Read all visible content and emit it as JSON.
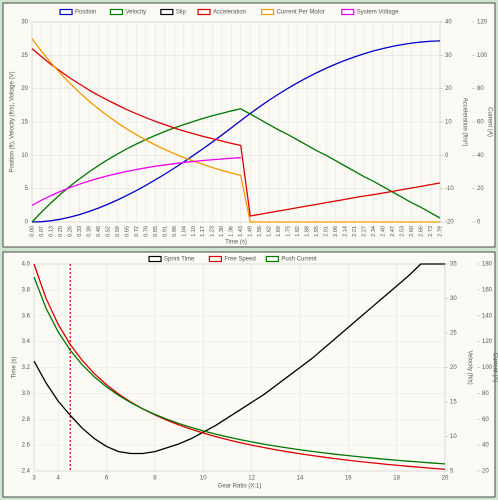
{
  "chart_data": [
    {
      "type": "line",
      "legend": "top",
      "grid": true,
      "categories": [
        "0.00",
        "0.07",
        "0.13",
        "0.20",
        "0.26",
        "0.33",
        "0.39",
        "0.46",
        "0.52",
        "0.59",
        "0.65",
        "0.72",
        "0.78",
        "0.85",
        "0.91",
        "0.98",
        "1.04",
        "1.10",
        "1.17",
        "1.23",
        "1.30",
        "1.36",
        "1.43",
        "1.49",
        "1.56",
        "1.62",
        "1.69",
        "1.75",
        "1.82",
        "1.88",
        "1.95",
        "2.01",
        "2.08",
        "2.14",
        "2.21",
        "2.27",
        "2.34",
        "2.40",
        "2.47",
        "2.53",
        "2.60",
        "2.66",
        "2.73",
        "2.79"
      ],
      "xlabel": "Time (s)",
      "ylabel": "Position (ft), Velocity (ft/s), Voltage (V)",
      "ylim": [
        0,
        30
      ],
      "yticks": [
        0,
        5,
        10,
        15,
        20,
        25,
        30
      ],
      "y2label": "Acceleration (ft/s²)",
      "y2lim": [
        -20,
        40
      ],
      "y2ticks": [
        -20,
        -10,
        0,
        10,
        20,
        30,
        40
      ],
      "y3label": "Current (A)",
      "y3lim": [
        0,
        120
      ],
      "y3ticks": [
        0,
        20,
        40,
        60,
        80,
        100,
        120
      ],
      "series": [
        {
          "name": "Position",
          "color": "#0000cc",
          "axis": "y",
          "values": [
            0,
            0.05,
            0.19,
            0.42,
            0.73,
            1.11,
            1.57,
            2.08,
            2.66,
            3.3,
            3.98,
            4.72,
            5.5,
            6.32,
            7.18,
            8.08,
            9.01,
            9.98,
            10.97,
            11.99,
            13.04,
            14.11,
            15.2,
            16.28,
            17.3,
            18.28,
            19.2,
            20.07,
            20.89,
            21.67,
            22.39,
            23.06,
            23.68,
            24.25,
            24.77,
            25.24,
            25.66,
            26.03,
            26.35,
            26.61,
            26.83,
            26.99,
            27.11,
            27.17
          ]
        },
        {
          "name": "Velocity",
          "color": "#007700",
          "axis": "y",
          "values": [
            0,
            1.49,
            2.87,
            4.16,
            5.36,
            6.47,
            7.5,
            8.46,
            9.36,
            10.19,
            10.98,
            11.7,
            12.37,
            12.99,
            13.58,
            14.12,
            14.61,
            15.08,
            15.53,
            15.93,
            16.3,
            16.66,
            16.98,
            16.2,
            15.4,
            14.6,
            13.8,
            13.1,
            12.3,
            11.5,
            10.7,
            10.0,
            9.2,
            8.4,
            7.6,
            6.8,
            6.1,
            5.3,
            4.5,
            3.7,
            2.9,
            2.2,
            1.4,
            0.6
          ]
        },
        {
          "name": "Slip",
          "color": "#000000",
          "axis": "y",
          "values": [
            null,
            null,
            null,
            null,
            null,
            null,
            null,
            null,
            null,
            null,
            null,
            null,
            null,
            null,
            null,
            null,
            null,
            null,
            null,
            null,
            null,
            null,
            null,
            null,
            null,
            null,
            null,
            null,
            null,
            null,
            null,
            null,
            null,
            null,
            null,
            null,
            null,
            null,
            null,
            null,
            null,
            null,
            null,
            null
          ]
        },
        {
          "name": "Acceleration",
          "color": "#dd0000",
          "axis": "y2",
          "values": [
            32,
            29.6,
            27.3,
            25.2,
            23.2,
            21.4,
            19.6,
            18,
            16.5,
            15.1,
            13.7,
            12.5,
            11.3,
            10.2,
            9.2,
            8.2,
            7.3,
            6.5,
            5.7,
            5,
            4.3,
            3.6,
            3,
            -18.2,
            -17.7,
            -17.2,
            -16.7,
            -16.2,
            -15.7,
            -15.2,
            -14.7,
            -14.2,
            -13.7,
            -13.2,
            -12.7,
            -12.2,
            -11.8,
            -11.3,
            -10.8,
            -10.3,
            -9.8,
            -9.3,
            -8.8,
            -8.3
          ]
        },
        {
          "name": "Current Per Motor",
          "color": "#f39c00",
          "axis": "y3",
          "values": [
            110,
            102.5,
            95.5,
            89.1,
            83.2,
            77.7,
            72.6,
            67.9,
            63.6,
            59.5,
            55.8,
            52.4,
            49.2,
            46.2,
            43.5,
            41,
            38.7,
            36.6,
            34.6,
            32.7,
            31,
            29.4,
            28,
            0,
            0,
            0,
            0,
            0,
            0,
            0,
            0,
            0,
            0,
            0,
            0,
            0,
            0,
            0,
            0,
            0,
            0,
            0,
            0,
            0
          ]
        },
        {
          "name": "System Voltage",
          "color": "#ee00ee",
          "axis": "y",
          "values": [
            2.5,
            3.27,
            3.96,
            4.59,
            5.16,
            5.67,
            6.14,
            6.56,
            6.94,
            7.28,
            7.59,
            7.87,
            8.13,
            8.36,
            8.56,
            8.75,
            8.92,
            9.08,
            9.22,
            9.34,
            9.45,
            9.56,
            9.65,
            null,
            null,
            null,
            null,
            null,
            null,
            null,
            null,
            null,
            null,
            null,
            null,
            null,
            null,
            null,
            null,
            null,
            null,
            null,
            null,
            null
          ]
        }
      ]
    },
    {
      "type": "line",
      "legend": "top",
      "grid": true,
      "x": [
        3,
        3.5,
        4,
        4.5,
        5,
        5.5,
        6,
        6.5,
        7,
        7.5,
        8,
        8.5,
        9,
        9.5,
        10,
        10.5,
        11,
        11.5,
        12,
        12.5,
        13,
        13.5,
        14,
        14.5,
        15,
        15.5,
        16,
        16.5,
        17,
        17.5,
        18,
        18.5,
        19,
        19.5,
        20
      ],
      "xlabel": "Gear Ratio (X:1)",
      "xlim": [
        3,
        20
      ],
      "xticks": [
        3,
        4,
        6,
        8,
        10,
        12,
        14,
        16,
        18,
        20
      ],
      "ylabel": "Time (s)",
      "ylim": [
        2.4,
        4.0
      ],
      "yticks": [
        2.4,
        2.6,
        2.8,
        {
          "value": 3.0,
          "label": "3.0"
        },
        3.2,
        3.4,
        3.6,
        3.8,
        {
          "value": 4.0,
          "label": "4.0"
        }
      ],
      "y2label": "Velocity (ft/s)",
      "y2lim": [
        5,
        35
      ],
      "y2ticks": [
        5,
        10,
        15,
        20,
        25,
        30,
        35
      ],
      "y3label": "Current (A)",
      "y3lim": [
        20,
        180
      ],
      "y3ticks": [
        20,
        40,
        60,
        80,
        100,
        120,
        140,
        160,
        180
      ],
      "vline": {
        "x": 4.5,
        "color": "#cc0000"
      },
      "series": [
        {
          "name": "Sprint Time",
          "color": "#000000",
          "axis": "y",
          "values": [
            3.25,
            3.08,
            2.94,
            2.83,
            2.73,
            2.65,
            2.59,
            2.55,
            2.535,
            2.535,
            2.55,
            2.58,
            2.61,
            2.65,
            2.7,
            2.75,
            2.81,
            2.87,
            2.93,
            2.99,
            3.06,
            3.13,
            3.2,
            3.27,
            3.35,
            3.43,
            3.51,
            3.59,
            3.67,
            3.75,
            3.83,
            3.91,
            4.0,
            4.0,
            4.0
          ]
        },
        {
          "name": "Free Speed",
          "color": "#dd0000",
          "axis": "y2",
          "values": [
            35,
            30,
            26.25,
            23.33,
            21,
            19.09,
            17.5,
            16.15,
            15,
            14,
            13.13,
            12.35,
            11.67,
            11.05,
            10.5,
            10,
            9.55,
            9.13,
            8.75,
            8.4,
            8.08,
            7.78,
            7.5,
            7.24,
            7,
            6.77,
            6.56,
            6.36,
            6.18,
            6,
            5.83,
            5.68,
            5.53,
            5.38,
            5.25
          ]
        },
        {
          "name": "Push Current",
          "color": "#007700",
          "axis": "y3",
          "values": [
            170,
            145.71,
            127.5,
            113.33,
            102,
            92.73,
            85,
            78.46,
            72.86,
            68,
            63.75,
            60,
            56.67,
            53.68,
            51,
            48.57,
            46.36,
            44.35,
            42.5,
            40.8,
            39.23,
            37.78,
            36.43,
            35.17,
            34,
            32.9,
            31.88,
            30.91,
            30,
            29.14,
            28.33,
            27.57,
            26.84,
            26.15,
            25.5
          ]
        }
      ]
    }
  ]
}
